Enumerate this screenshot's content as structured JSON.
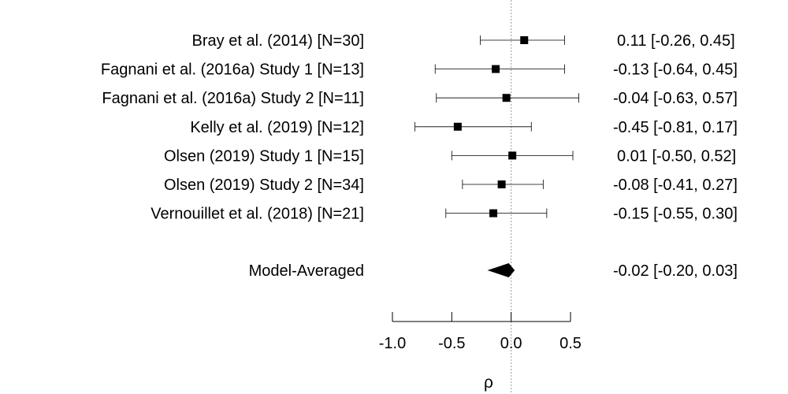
{
  "chart_data": {
    "type": "forest",
    "xlabel": "ρ",
    "xlim": [
      -1.0,
      0.5
    ],
    "xticks": [
      "-1.0",
      "-0.5",
      "0.0",
      "0.5"
    ],
    "xtick_values": [
      -1.0,
      -0.5,
      0.0,
      0.5
    ],
    "reference_line": 0.0,
    "studies": [
      {
        "label": "Bray et al. (2014) [N=30]",
        "estimate": 0.11,
        "lower": -0.26,
        "upper": 0.45,
        "text": "0.11 [-0.26, 0.45]"
      },
      {
        "label": "Fagnani et al. (2016a) Study 1 [N=13]",
        "estimate": -0.13,
        "lower": -0.64,
        "upper": 0.45,
        "text": "-0.13 [-0.64, 0.45]"
      },
      {
        "label": "Fagnani et al. (2016a) Study 2 [N=11]",
        "estimate": -0.04,
        "lower": -0.63,
        "upper": 0.57,
        "text": "-0.04 [-0.63, 0.57]"
      },
      {
        "label": "Kelly et al. (2019) [N=12]",
        "estimate": -0.45,
        "lower": -0.81,
        "upper": 0.17,
        "text": "-0.45 [-0.81, 0.17]"
      },
      {
        "label": "Olsen (2019) Study 1 [N=15]",
        "estimate": 0.01,
        "lower": -0.5,
        "upper": 0.52,
        "text": "0.01 [-0.50, 0.52]"
      },
      {
        "label": "Olsen (2019) Study 2 [N=34]",
        "estimate": -0.08,
        "lower": -0.41,
        "upper": 0.27,
        "text": "-0.08 [-0.41, 0.27]"
      },
      {
        "label": "Vernouillet et al. (2018) [N=21]",
        "estimate": -0.15,
        "lower": -0.55,
        "upper": 0.3,
        "text": "-0.15 [-0.55, 0.30]"
      }
    ],
    "summary": {
      "label": "Model-Averaged",
      "estimate": -0.02,
      "lower": -0.2,
      "upper": 0.03,
      "text": "-0.02 [-0.20, 0.03]"
    }
  }
}
